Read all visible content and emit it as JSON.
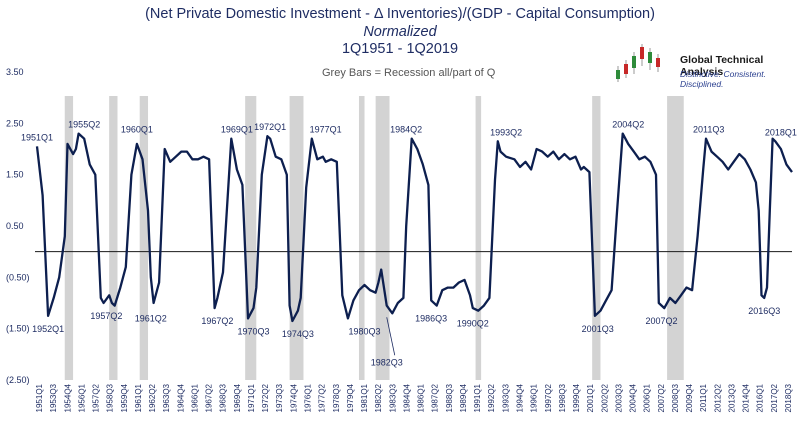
{
  "header": {
    "title": "(Net Private Domestic Investment - Δ Inventories)/(GDP - Capital Consumption)",
    "subtitle": "Normalized",
    "period": "1Q1951 - 1Q2019",
    "recession_note": "Grey Bars = Recession all/part of Q"
  },
  "logo": {
    "name": "Global Technical Analysis",
    "tagline": "Distinctive. Consistent.  Disciplined."
  },
  "colors": {
    "line": "#0d1f4f",
    "recession": "#d3d3d3",
    "zero_line": "#1a1a1a"
  },
  "chart_data": {
    "type": "line",
    "ylim": [
      -2.5,
      3.5
    ],
    "y_ticks": [
      "3.50",
      "2.50",
      "1.50",
      "0.50",
      "(0.50)",
      "(1.50)",
      "(2.50)"
    ],
    "y_tick_values": [
      3.5,
      2.5,
      1.5,
      0.5,
      -0.5,
      -1.5,
      -2.5
    ],
    "x_ticks": [
      "1951Q1",
      "1953Q3",
      "1954Q4",
      "1956Q1",
      "1957Q2",
      "1958Q3",
      "1959Q4",
      "1961Q1",
      "1962Q2",
      "1963Q3",
      "1964Q4",
      "1966Q1",
      "1967Q2",
      "1968Q3",
      "1969Q4",
      "1971Q1",
      "1972Q2",
      "1973Q3",
      "1974Q4",
      "1976Q1",
      "1977Q2",
      "1978Q3",
      "1979Q4",
      "1981Q1",
      "1982Q2",
      "1983Q3",
      "1984Q4",
      "1986Q1",
      "1987Q2",
      "1988Q3",
      "1989Q4",
      "1991Q1",
      "1992Q2",
      "1993Q3",
      "1994Q4",
      "1996Q1",
      "1997Q2",
      "1998Q3",
      "1999Q4",
      "2001Q1",
      "2002Q2",
      "2003Q3",
      "2004Q4",
      "2006Q1",
      "2007Q2",
      "2008Q3",
      "2009Q4",
      "2011Q1",
      "2012Q2",
      "2013Q3",
      "2014Q4",
      "2016Q1",
      "2017Q2",
      "2018Q3"
    ],
    "recessions": [
      [
        1953.5,
        1954.25
      ],
      [
        1957.5,
        1958.25
      ],
      [
        1960.25,
        1961.0
      ],
      [
        1969.75,
        1970.75
      ],
      [
        1973.75,
        1975.0
      ],
      [
        1980.0,
        1980.5
      ],
      [
        1981.5,
        1982.75
      ],
      [
        1990.5,
        1991.0
      ],
      [
        2001.0,
        2001.75
      ],
      [
        2007.75,
        2009.25
      ]
    ],
    "series": [
      {
        "x": [
          1951.0,
          1951.5,
          1952.0,
          1952.5,
          1953.0,
          1953.5,
          1953.75,
          1954.25,
          1954.5,
          1954.75,
          1955.25,
          1955.75,
          1956.25,
          1956.75,
          1957.0,
          1957.5,
          1957.75,
          1958.0,
          1958.5,
          1959.0,
          1959.5,
          1960.0,
          1960.5,
          1961.0,
          1961.25,
          1961.5,
          1962.0,
          1962.5,
          1963.0,
          1963.5,
          1964.0,
          1964.5,
          1965.0,
          1965.5,
          1966.0,
          1966.5,
          1967.0,
          1967.25,
          1967.75,
          1968.5,
          1969.0,
          1969.5,
          1970.0,
          1970.5,
          1970.75,
          1971.25,
          1971.75,
          1972.0,
          1972.5,
          1973.0,
          1973.5,
          1973.75,
          1974.0,
          1974.5,
          1974.75,
          1975.25,
          1975.75,
          1976.25,
          1976.75,
          1977.0,
          1977.5,
          1978.0,
          1978.5,
          1979.0,
          1979.5,
          1980.0,
          1980.5,
          1981.0,
          1981.5,
          1981.75,
          1982.0,
          1982.5,
          1983.0,
          1983.5,
          1984.0,
          1984.25,
          1984.75,
          1985.25,
          1985.75,
          1986.25,
          1986.5,
          1987.0,
          1987.5,
          1988.0,
          1988.5,
          1989.0,
          1989.5,
          1990.0,
          1990.25,
          1990.75,
          1991.25,
          1991.75,
          1992.25,
          1992.5,
          1992.75,
          1993.25,
          1994.0,
          1994.5,
          1995.0,
          1995.5,
          1996.0,
          1996.5,
          1997.0,
          1997.5,
          1998.0,
          1998.5,
          1999.0,
          1999.5,
          2000.0,
          2000.25,
          2000.75,
          2001.25,
          2001.75,
          2002.25,
          2002.75,
          2003.25,
          2003.75,
          2004.25,
          2004.75,
          2005.25,
          2005.75,
          2006.25,
          2006.75,
          2007.0,
          2007.5,
          2008.0,
          2008.5,
          2009.0,
          2009.5,
          2010.0,
          2010.5,
          2011.0,
          2011.25,
          2011.75,
          2012.25,
          2012.75,
          2013.25,
          2013.75,
          2014.25,
          2014.75,
          2015.25,
          2015.75,
          2016.0,
          2016.25,
          2016.5,
          2016.75,
          2017.0,
          2017.25,
          2017.5,
          2018.0,
          2018.5,
          2019.0
        ],
        "y": [
          2.05,
          1.1,
          -1.25,
          -0.9,
          -0.5,
          0.3,
          2.1,
          1.9,
          2.0,
          2.3,
          2.2,
          1.7,
          1.5,
          -0.9,
          -1.0,
          -0.85,
          -1.0,
          -1.05,
          -0.7,
          -0.3,
          1.5,
          2.1,
          1.8,
          0.8,
          -0.5,
          -1.0,
          -0.6,
          2.0,
          1.75,
          1.85,
          1.95,
          1.95,
          1.8,
          1.8,
          1.85,
          1.8,
          -1.1,
          -0.9,
          -0.4,
          2.2,
          1.6,
          1.3,
          -1.3,
          -1.1,
          -0.7,
          1.5,
          2.25,
          2.2,
          1.85,
          1.8,
          1.5,
          -1.05,
          -1.35,
          -1.15,
          -0.9,
          1.25,
          2.2,
          1.8,
          1.85,
          1.75,
          1.8,
          1.75,
          -0.85,
          -1.3,
          -0.95,
          -0.75,
          -0.65,
          -0.75,
          -0.8,
          -0.6,
          -0.35,
          -1.05,
          -1.2,
          -1.0,
          -0.9,
          0.5,
          2.2,
          2.0,
          1.7,
          1.3,
          -0.95,
          -1.05,
          -0.75,
          -0.7,
          -0.7,
          -0.6,
          -0.55,
          -0.85,
          -1.1,
          -1.15,
          -1.05,
          -0.9,
          1.4,
          2.15,
          1.95,
          1.85,
          1.8,
          1.65,
          1.75,
          1.6,
          2.0,
          1.95,
          1.85,
          1.95,
          1.8,
          1.9,
          1.8,
          1.85,
          1.6,
          1.65,
          1.55,
          -1.25,
          -1.15,
          -0.95,
          -0.75,
          0.8,
          2.3,
          2.1,
          1.95,
          1.8,
          1.85,
          1.75,
          1.5,
          -1.0,
          -1.1,
          -0.9,
          -1.0,
          -0.85,
          -0.7,
          -0.75,
          0.3,
          1.6,
          2.2,
          1.95,
          1.85,
          1.75,
          1.6,
          1.75,
          1.9,
          1.8,
          1.6,
          1.35,
          0.8,
          -0.85,
          -0.9,
          -0.7,
          0.8,
          2.2,
          2.15,
          2.0,
          1.7,
          1.55
        ]
      }
    ],
    "annotations": [
      {
        "label": "1951Q1",
        "x": 1951.0,
        "y": 2.05,
        "pos": "above"
      },
      {
        "label": "1952Q1",
        "x": 1952.0,
        "y": -1.25,
        "pos": "below"
      },
      {
        "label": "1955Q2",
        "x": 1955.25,
        "y": 2.3,
        "pos": "above"
      },
      {
        "label": "1957Q2",
        "x": 1957.25,
        "y": -1.0,
        "pos": "below"
      },
      {
        "label": "1960Q1",
        "x": 1960.0,
        "y": 2.2,
        "pos": "above"
      },
      {
        "label": "1961Q2",
        "x": 1961.25,
        "y": -1.05,
        "pos": "below"
      },
      {
        "label": "1967Q2",
        "x": 1967.25,
        "y": -1.1,
        "pos": "below"
      },
      {
        "label": "1969Q1",
        "x": 1969.0,
        "y": 2.2,
        "pos": "above"
      },
      {
        "label": "1970Q3",
        "x": 1970.5,
        "y": -1.3,
        "pos": "below"
      },
      {
        "label": "1972Q1",
        "x": 1972.0,
        "y": 2.25,
        "pos": "above"
      },
      {
        "label": "1974Q3",
        "x": 1974.5,
        "y": -1.35,
        "pos": "below"
      },
      {
        "label": "1977Q1",
        "x": 1977.0,
        "y": 2.2,
        "pos": "above"
      },
      {
        "label": "1980Q3",
        "x": 1980.5,
        "y": -1.3,
        "pos": "below"
      },
      {
        "label": "1982Q3",
        "x": 1982.5,
        "y": -1.2,
        "pos": "below-far"
      },
      {
        "label": "1984Q2",
        "x": 1984.25,
        "y": 2.2,
        "pos": "above"
      },
      {
        "label": "1986Q3",
        "x": 1986.5,
        "y": -1.05,
        "pos": "below"
      },
      {
        "label": "1990Q2",
        "x": 1990.25,
        "y": -1.15,
        "pos": "below"
      },
      {
        "label": "1993Q2",
        "x": 1993.25,
        "y": 2.15,
        "pos": "above"
      },
      {
        "label": "2001Q3",
        "x": 2001.5,
        "y": -1.25,
        "pos": "below"
      },
      {
        "label": "2004Q2",
        "x": 2004.25,
        "y": 2.3,
        "pos": "above"
      },
      {
        "label": "2007Q2",
        "x": 2007.25,
        "y": -1.1,
        "pos": "below"
      },
      {
        "label": "2011Q3",
        "x": 2011.5,
        "y": 2.2,
        "pos": "above"
      },
      {
        "label": "2016Q3",
        "x": 2016.5,
        "y": -0.9,
        "pos": "below"
      },
      {
        "label": "2018Q1",
        "x": 2018.0,
        "y": 2.15,
        "pos": "above"
      }
    ]
  }
}
